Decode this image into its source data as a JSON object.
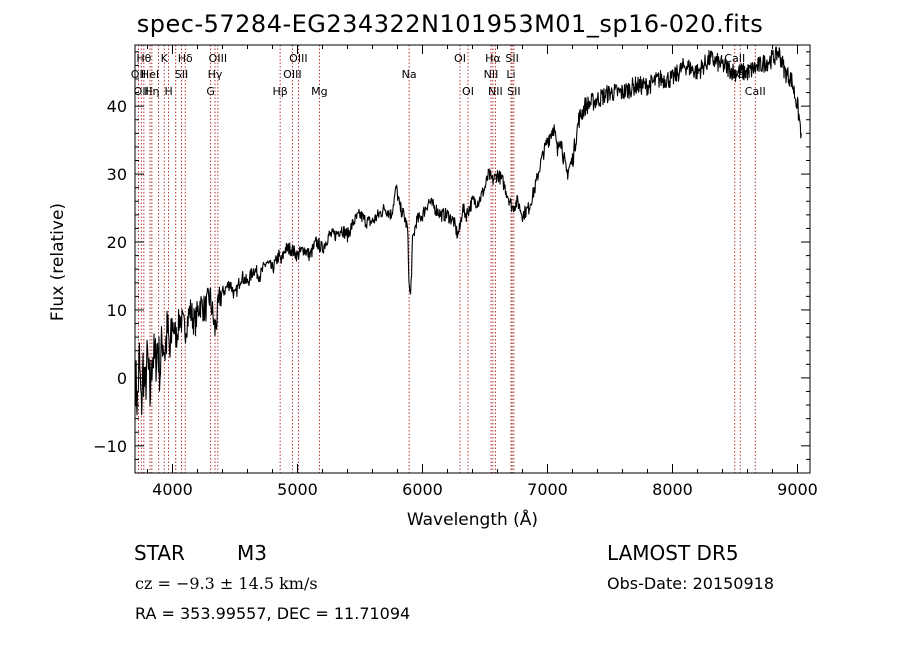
{
  "header": {
    "title": "spec-57284-EG234322N101953M01_sp16-020.fits"
  },
  "info": {
    "object_class": "STAR",
    "object_subclass": "M3",
    "survey": "LAMOST  DR5",
    "redshift_line": "cz = −9.3 ± 14.5 km/s",
    "obs_date": "Obs-Date: 20150918",
    "coords": "RA = 353.99557, DEC =  11.71094"
  },
  "chart_data": {
    "type": "line",
    "title": "spec-57284-EG234322N101953M01_sp16-020.fits",
    "xlabel": "Wavelength (Å)",
    "ylabel": "Flux (relative)",
    "xlim": [
      3700,
      9100
    ],
    "ylim": [
      -14,
      49
    ],
    "xticks": [
      4000,
      5000,
      6000,
      7000,
      8000,
      9000
    ],
    "yticks": [
      -10,
      0,
      10,
      20,
      30,
      40
    ],
    "grid": false,
    "line_color": "#000000",
    "marker_line_color": "#a00000",
    "series": [
      {
        "points": [
          [
            3705,
            0
          ],
          [
            3720,
            -4
          ],
          [
            3735,
            3
          ],
          [
            3750,
            -5
          ],
          [
            3765,
            2
          ],
          [
            3780,
            -2
          ],
          [
            3800,
            3
          ],
          [
            3820,
            -3
          ],
          [
            3840,
            4
          ],
          [
            3860,
            2
          ],
          [
            3880,
            5
          ],
          [
            3900,
            1
          ],
          [
            3920,
            6
          ],
          [
            3940,
            4
          ],
          [
            3960,
            7
          ],
          [
            3980,
            3
          ],
          [
            4000,
            8
          ],
          [
            4030,
            6
          ],
          [
            4060,
            9
          ],
          [
            4100,
            7
          ],
          [
            4140,
            10
          ],
          [
            4180,
            8
          ],
          [
            4220,
            11
          ],
          [
            4260,
            10
          ],
          [
            4300,
            12
          ],
          [
            4340,
            7
          ],
          [
            4380,
            12
          ],
          [
            4420,
            13
          ],
          [
            4460,
            14
          ],
          [
            4500,
            12
          ],
          [
            4550,
            15
          ],
          [
            4600,
            14
          ],
          [
            4650,
            16
          ],
          [
            4700,
            15
          ],
          [
            4750,
            17
          ],
          [
            4800,
            16
          ],
          [
            4850,
            18
          ],
          [
            4870,
            17
          ],
          [
            4900,
            19
          ],
          [
            4950,
            19
          ],
          [
            5000,
            18
          ],
          [
            5050,
            19
          ],
          [
            5100,
            18
          ],
          [
            5150,
            20
          ],
          [
            5200,
            19
          ],
          [
            5250,
            21
          ],
          [
            5300,
            21
          ],
          [
            5350,
            22
          ],
          [
            5400,
            21
          ],
          [
            5450,
            23
          ],
          [
            5500,
            24
          ],
          [
            5550,
            23
          ],
          [
            5600,
            23
          ],
          [
            5650,
            24
          ],
          [
            5700,
            25
          ],
          [
            5750,
            24
          ],
          [
            5790,
            28
          ],
          [
            5820,
            25
          ],
          [
            5850,
            24
          ],
          [
            5880,
            22
          ],
          [
            5895,
            13
          ],
          [
            5905,
            12
          ],
          [
            5920,
            20
          ],
          [
            5950,
            23
          ],
          [
            6000,
            24
          ],
          [
            6050,
            26
          ],
          [
            6100,
            25
          ],
          [
            6150,
            24
          ],
          [
            6200,
            24
          ],
          [
            6250,
            23
          ],
          [
            6280,
            21
          ],
          [
            6300,
            22
          ],
          [
            6320,
            25
          ],
          [
            6350,
            24
          ],
          [
            6400,
            26
          ],
          [
            6450,
            26
          ],
          [
            6500,
            28
          ],
          [
            6530,
            30
          ],
          [
            6560,
            29
          ],
          [
            6600,
            30
          ],
          [
            6640,
            29
          ],
          [
            6680,
            27
          ],
          [
            6720,
            25
          ],
          [
            6760,
            26
          ],
          [
            6800,
            24
          ],
          [
            6850,
            25
          ],
          [
            6900,
            28
          ],
          [
            6950,
            32
          ],
          [
            7000,
            35
          ],
          [
            7050,
            37
          ],
          [
            7080,
            33
          ],
          [
            7100,
            36
          ],
          [
            7150,
            30
          ],
          [
            7200,
            32
          ],
          [
            7250,
            38
          ],
          [
            7300,
            40
          ],
          [
            7400,
            41
          ],
          [
            7500,
            42
          ],
          [
            7600,
            42
          ],
          [
            7700,
            43
          ],
          [
            7800,
            43
          ],
          [
            7900,
            44
          ],
          [
            8000,
            44
          ],
          [
            8100,
            46
          ],
          [
            8200,
            45
          ],
          [
            8300,
            47
          ],
          [
            8400,
            46
          ],
          [
            8500,
            45
          ],
          [
            8600,
            45
          ],
          [
            8700,
            46
          ],
          [
            8800,
            47
          ],
          [
            8850,
            48
          ],
          [
            8900,
            45
          ],
          [
            8950,
            44
          ],
          [
            9000,
            40
          ],
          [
            9030,
            36
          ]
        ]
      }
    ],
    "line_markers": [
      {
        "wavelength": 3727,
        "label": "OII",
        "row": 1
      },
      {
        "wavelength": 3750,
        "label": "OII",
        "row": 2
      },
      {
        "wavelength": 3771,
        "label": "Hθ",
        "row": 0
      },
      {
        "wavelength": 3820,
        "label": "HeI",
        "row": 1
      },
      {
        "wavelength": 3835,
        "label": "Hη",
        "row": 2
      },
      {
        "wavelength": 3889,
        "label": "",
        "row": 0
      },
      {
        "wavelength": 3934,
        "label": "K",
        "row": 0
      },
      {
        "wavelength": 3969,
        "label": "H",
        "row": 2
      },
      {
        "wavelength": 4026,
        "label": "",
        "row": 0
      },
      {
        "wavelength": 4072,
        "label": "SII",
        "row": 1
      },
      {
        "wavelength": 4102,
        "label": "Hδ",
        "row": 0
      },
      {
        "wavelength": 4305,
        "label": "G",
        "row": 2
      },
      {
        "wavelength": 4340,
        "label": "Hγ",
        "row": 1
      },
      {
        "wavelength": 4363,
        "label": "OIII",
        "row": 0
      },
      {
        "wavelength": 4861,
        "label": "Hβ",
        "row": 2
      },
      {
        "wavelength": 4959,
        "label": "OIII",
        "row": 1
      },
      {
        "wavelength": 5007,
        "label": "OIII",
        "row": 0
      },
      {
        "wavelength": 5175,
        "label": "Mg",
        "row": 2
      },
      {
        "wavelength": 5893,
        "label": "Na",
        "row": 1
      },
      {
        "wavelength": 6300,
        "label": "OI",
        "row": 0
      },
      {
        "wavelength": 6364,
        "label": "OI",
        "row": 2
      },
      {
        "wavelength": 6548,
        "label": "NII",
        "row": 1
      },
      {
        "wavelength": 6563,
        "label": "Hα",
        "row": 0
      },
      {
        "wavelength": 6583,
        "label": "NII",
        "row": 2
      },
      {
        "wavelength": 6708,
        "label": "Li",
        "row": 1
      },
      {
        "wavelength": 6717,
        "label": "SII",
        "row": 0
      },
      {
        "wavelength": 6731,
        "label": "SII",
        "row": 2
      },
      {
        "wavelength": 8498,
        "label": "CaII",
        "row": 0
      },
      {
        "wavelength": 8542,
        "label": "CaII",
        "row": 1
      },
      {
        "wavelength": 8662,
        "label": "CaII",
        "row": 2
      }
    ]
  }
}
